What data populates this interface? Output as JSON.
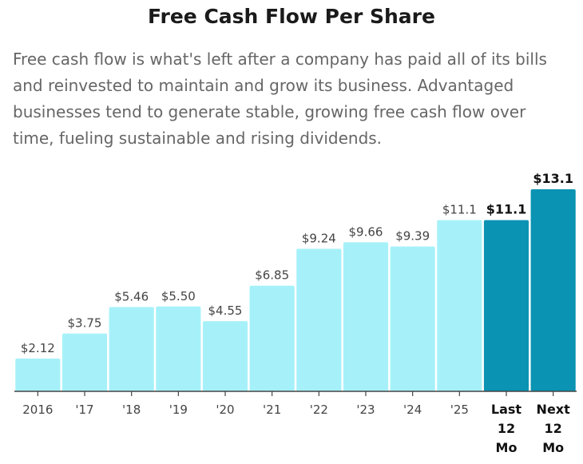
{
  "title": "Free Cash Flow Per Share",
  "description": "Free cash flow is what's left after a company has paid all of its bills and reinvested to maintain and grow its business. Advantaged businesses tend to generate stable, growing free cash flow over time, fueling sustainable and rising dividends.",
  "colors": {
    "bar": "#a6f1f9",
    "highlight": "#0a93b3",
    "axis": "#444444"
  },
  "chart_data": {
    "type": "bar",
    "title": "Free Cash Flow Per Share",
    "xlabel": "",
    "ylabel": "",
    "ylim": [
      0,
      13.1
    ],
    "grid": false,
    "categories": [
      [
        "2016"
      ],
      [
        "'17"
      ],
      [
        "'18"
      ],
      [
        "'19"
      ],
      [
        "'20"
      ],
      [
        "'21"
      ],
      [
        "'22"
      ],
      [
        "'23"
      ],
      [
        "'24"
      ],
      [
        "'25"
      ],
      [
        "Last",
        "12",
        "Mo"
      ],
      [
        "Next",
        "12",
        "Mo"
      ]
    ],
    "values": [
      2.12,
      3.75,
      5.46,
      5.5,
      4.55,
      6.85,
      9.24,
      9.66,
      9.39,
      11.1,
      11.1,
      13.1
    ],
    "labels": [
      "$2.12",
      "$3.75",
      "$5.46",
      "$5.50",
      "$4.55",
      "$6.85",
      "$9.24",
      "$9.66",
      "$9.39",
      "$11.1",
      "$11.1",
      "$13.1"
    ],
    "highlighted": [
      false,
      false,
      false,
      false,
      false,
      false,
      false,
      false,
      false,
      false,
      true,
      true
    ]
  }
}
